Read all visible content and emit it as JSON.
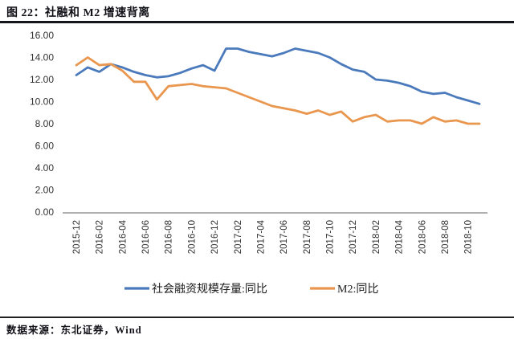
{
  "figure": {
    "title": "图 22：社融和 M2 增速背离",
    "source": "数据来源：东北证券，Wind"
  },
  "colors": {
    "sofi_blue": "#4a7abc",
    "m2_orange": "#e9964f",
    "axis_line": "#808080",
    "top_rule": "#15151d",
    "bottom_rule": "#222222"
  },
  "chart_data": {
    "type": "line",
    "title": "",
    "xlabel": "",
    "ylabel": "",
    "grid": false,
    "legend_position": "bottom",
    "y_axis": {
      "min": 0,
      "max": 16,
      "step": 2,
      "tick_labels": [
        "16.00",
        "14.00",
        "12.00",
        "10.00",
        "8.00",
        "6.00",
        "4.00",
        "2.00",
        "0.00"
      ]
    },
    "x": [
      "2015-12",
      "2016-01",
      "2016-02",
      "2016-03",
      "2016-04",
      "2016-05",
      "2016-06",
      "2016-07",
      "2016-08",
      "2016-09",
      "2016-10",
      "2016-11",
      "2016-12",
      "2017-01",
      "2017-02",
      "2017-03",
      "2017-04",
      "2017-05",
      "2017-06",
      "2017-07",
      "2017-08",
      "2017-09",
      "2017-10",
      "2017-11",
      "2017-12",
      "2018-01",
      "2018-02",
      "2018-03",
      "2018-04",
      "2018-05",
      "2018-06",
      "2018-07",
      "2018-08",
      "2018-09",
      "2018-10",
      "2018-11"
    ],
    "x_tick_labels": [
      "2015-12",
      "2016-02",
      "2016-04",
      "2016-06",
      "2016-08",
      "2016-10",
      "2016-12",
      "2017-02",
      "2017-04",
      "2017-06",
      "2017-08",
      "2017-10",
      "2017-12",
      "2018-02",
      "2018-04",
      "2018-06",
      "2018-08",
      "2018-10"
    ],
    "series": [
      {
        "name": "社会融资规模存量:同比",
        "color": "#4a7abc",
        "values": [
          12.4,
          13.1,
          12.7,
          13.4,
          13.1,
          12.7,
          12.4,
          12.2,
          12.3,
          12.6,
          13.0,
          13.3,
          12.8,
          14.8,
          14.8,
          14.5,
          14.3,
          14.1,
          14.4,
          14.8,
          14.6,
          14.4,
          14.0,
          13.4,
          12.9,
          12.7,
          12.0,
          11.9,
          11.7,
          11.4,
          10.9,
          10.7,
          10.8,
          10.4,
          10.1,
          9.8
        ]
      },
      {
        "name": "M2:同比",
        "color": "#e9964f",
        "values": [
          13.3,
          14.0,
          13.3,
          13.4,
          12.8,
          11.8,
          11.8,
          10.2,
          11.4,
          11.5,
          11.6,
          11.4,
          11.3,
          11.2,
          10.8,
          10.4,
          10.0,
          9.6,
          9.4,
          9.2,
          8.9,
          9.2,
          8.8,
          9.1,
          8.2,
          8.6,
          8.8,
          8.2,
          8.3,
          8.3,
          8.0,
          8.6,
          8.2,
          8.3,
          8.0,
          8.0
        ]
      }
    ]
  }
}
